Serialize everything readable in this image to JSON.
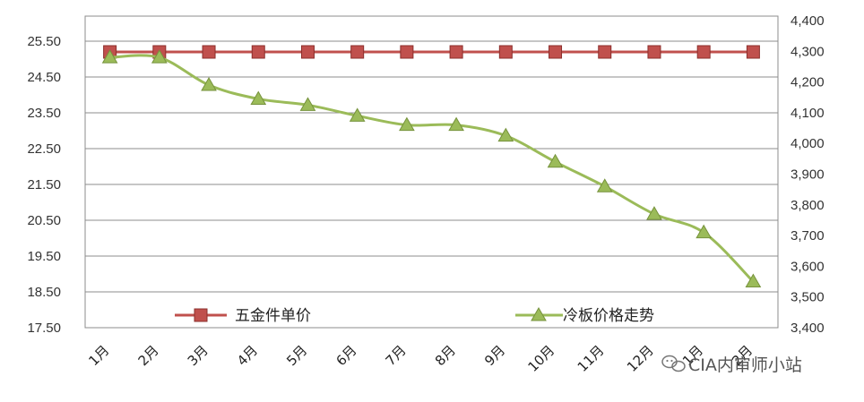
{
  "chart_data": {
    "type": "line",
    "categories": [
      "1月",
      "2月",
      "3月",
      "4月",
      "5月",
      "6月",
      "7月",
      "8月",
      "9月",
      "10月",
      "11月",
      "12月",
      "1月",
      "2月"
    ],
    "series": [
      {
        "name": "五金件单价",
        "axis": "left",
        "marker": "square",
        "color": "#c0504d",
        "values": [
          25.2,
          25.2,
          25.2,
          25.2,
          25.2,
          25.2,
          25.2,
          25.2,
          25.2,
          25.2,
          25.2,
          25.2,
          25.2,
          25.2
        ]
      },
      {
        "name": "冷板价格走势",
        "axis": "right",
        "marker": "triangle",
        "color": "#9bbb59",
        "values": [
          4280,
          4280,
          4190,
          4145,
          4125,
          4090,
          4060,
          4060,
          4025,
          3940,
          3860,
          3770,
          3710,
          3550
        ]
      }
    ],
    "y_left": {
      "ticks": [
        "25.50",
        "24.50",
        "23.50",
        "22.50",
        "21.50",
        "20.50",
        "19.50",
        "18.50",
        "17.50"
      ],
      "range": [
        17.5,
        25.5
      ]
    },
    "y_right": {
      "ticks": [
        "4,400",
        "4,300",
        "4,200",
        "4,100",
        "4,000",
        "3,900",
        "3,800",
        "3,700",
        "3,600",
        "3,500",
        "3,400"
      ],
      "range": [
        3400,
        4400
      ]
    },
    "grid": true,
    "legend": "bottom-inside",
    "title": "",
    "xlabel": "",
    "ylabel": ""
  },
  "watermark": {
    "text": "CIA内审师小站",
    "icon": "wechat-icon"
  }
}
